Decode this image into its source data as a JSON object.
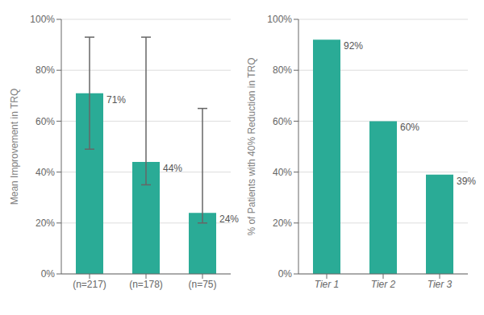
{
  "chart_data": [
    {
      "type": "bar",
      "categories": [
        "(n=217)",
        "(n=178)",
        "(n=75)"
      ],
      "values": [
        71,
        44,
        24
      ],
      "value_labels": [
        "71%",
        "44%",
        "24%"
      ],
      "data_labels": true,
      "errors_lower": [
        22,
        9,
        4
      ],
      "errors_upper": [
        22,
        49,
        41
      ],
      "y_label": "Mean Improvement in TRQ",
      "color": "#2aab96",
      "ylim": [
        0,
        100
      ],
      "yticks": [
        {
          "value": 0,
          "label": "0%"
        },
        {
          "value": 20,
          "label": "20%"
        },
        {
          "value": 40,
          "label": "40%"
        },
        {
          "value": 60,
          "label": "60%"
        },
        {
          "value": 80,
          "label": "80%"
        },
        {
          "value": 100,
          "label": "100%"
        }
      ],
      "grid": true
    },
    {
      "type": "bar",
      "categories": [
        "Tier 1",
        "Tier 2",
        "Tier 3"
      ],
      "values": [
        92,
        60,
        39
      ],
      "value_labels": [
        "92%",
        "60%",
        "39%"
      ],
      "data_labels": true,
      "y_label": "% of Patients with 40% Reduction in TRQ",
      "color": "#2aab96",
      "ylim": [
        0,
        100
      ],
      "yticks": [
        {
          "value": 0,
          "label": "0%"
        },
        {
          "value": 20,
          "label": "20%"
        },
        {
          "value": 40,
          "label": "40%"
        },
        {
          "value": 60,
          "label": "60%"
        },
        {
          "value": 80,
          "label": "80%"
        },
        {
          "value": 100,
          "label": "100%"
        }
      ],
      "grid": true
    }
  ]
}
